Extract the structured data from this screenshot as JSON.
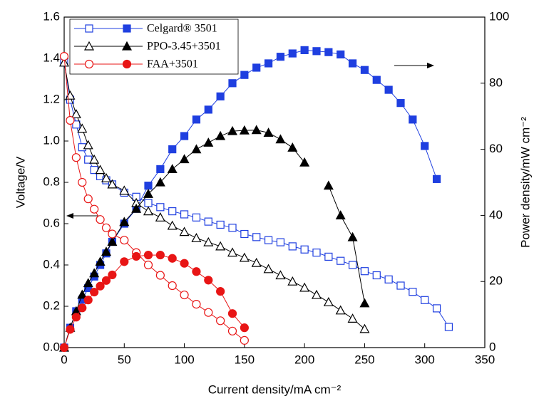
{
  "chart_data": {
    "type": "line",
    "x_label": "Current density/mA cm⁻²",
    "y_label": "Voltage/V",
    "y2_label": "Power density/mW cm⁻²",
    "xlim": [
      0,
      350
    ],
    "xticks": [
      0,
      50,
      100,
      150,
      200,
      250,
      300,
      350
    ],
    "ylim": [
      0,
      1.6
    ],
    "yticks": [
      {
        "value": 0,
        "label": "0.0"
      },
      {
        "value": 0.2,
        "label": "0.2"
      },
      {
        "value": 0.4,
        "label": "0.4"
      },
      {
        "value": 0.6,
        "label": "0.6"
      },
      {
        "value": 0.8,
        "label": "0.8"
      },
      {
        "value": 1,
        "label": "1.0"
      },
      {
        "value": 1.2,
        "label": "1.2"
      },
      {
        "value": 1.4,
        "label": "1.4"
      },
      {
        "value": 1.6,
        "label": "1.6"
      }
    ],
    "y2lim": [
      0,
      100
    ],
    "y2ticks": [
      0,
      20,
      40,
      60,
      80,
      100
    ],
    "series": [
      {
        "name": "Celgard® 3501",
        "color": "#1f3fe0",
        "marker": "square",
        "x": [
          0,
          5,
          10,
          15,
          20,
          25,
          30,
          35,
          40,
          50,
          60,
          70,
          80,
          90,
          100,
          110,
          120,
          130,
          140,
          150,
          160,
          170,
          180,
          190,
          200,
          210,
          220,
          230,
          240,
          250,
          260,
          270,
          280,
          290,
          300,
          310,
          320
        ],
        "voltage": [
          1.38,
          1.2,
          1.08,
          0.97,
          0.91,
          0.86,
          0.83,
          0.81,
          0.79,
          0.75,
          0.73,
          0.7,
          0.68,
          0.66,
          0.645,
          0.63,
          0.61,
          0.595,
          0.58,
          0.55,
          0.535,
          0.52,
          0.51,
          0.49,
          0.475,
          0.46,
          0.44,
          0.42,
          0.4,
          0.37,
          0.35,
          0.33,
          0.3,
          0.27,
          0.23,
          0.19,
          0.1
        ],
        "power": [
          0,
          6,
          11,
          14.5,
          18,
          21.5,
          25,
          28.5,
          32,
          37.5,
          42,
          49,
          54,
          60,
          64,
          69,
          72,
          76,
          80,
          82.5,
          84.7,
          86,
          88,
          89,
          90,
          89.7,
          89.4,
          88.7,
          86,
          84,
          81,
          78,
          74,
          69,
          61,
          51,
          null
        ]
      },
      {
        "name": "PPO-3.45+3501",
        "color": "#000000",
        "marker": "triangle",
        "x": [
          0,
          5,
          10,
          15,
          20,
          25,
          30,
          35,
          40,
          50,
          60,
          70,
          80,
          90,
          100,
          110,
          120,
          130,
          140,
          150,
          160,
          170,
          180,
          190,
          200,
          210,
          220,
          230,
          240,
          250
        ],
        "voltage": [
          1.38,
          1.22,
          1.13,
          1.06,
          0.98,
          0.91,
          0.86,
          0.82,
          0.79,
          0.76,
          0.7,
          0.66,
          0.63,
          0.59,
          0.56,
          0.53,
          0.51,
          0.49,
          0.46,
          0.435,
          0.41,
          0.38,
          0.35,
          0.32,
          0.29,
          0.255,
          0.22,
          0.18,
          0.14,
          0.09
        ],
        "power": [
          0,
          6,
          11,
          16,
          19.5,
          22.5,
          26,
          29,
          32,
          38,
          42,
          46.5,
          50,
          54,
          57,
          60,
          62,
          64,
          65.5,
          65.7,
          65.8,
          65,
          63,
          60.5,
          56,
          null,
          49,
          40,
          33.4,
          13.4
        ]
      },
      {
        "name": "FAA+3501",
        "color": "#e81515",
        "marker": "circle",
        "x": [
          0,
          5,
          10,
          15,
          20,
          25,
          30,
          35,
          40,
          50,
          60,
          70,
          80,
          90,
          100,
          110,
          120,
          130,
          140,
          150
        ],
        "voltage": [
          1.41,
          1.1,
          0.92,
          0.8,
          0.72,
          0.67,
          0.62,
          0.58,
          0.55,
          0.52,
          0.46,
          0.4,
          0.35,
          0.3,
          0.255,
          0.21,
          0.17,
          0.13,
          0.08,
          0.035
        ],
        "power": [
          0,
          5.5,
          9.2,
          12,
          14.4,
          16.8,
          18.6,
          20.3,
          22,
          26,
          27.6,
          28,
          28,
          27,
          25.5,
          23,
          20.4,
          17,
          10.3,
          6
        ]
      }
    ]
  }
}
